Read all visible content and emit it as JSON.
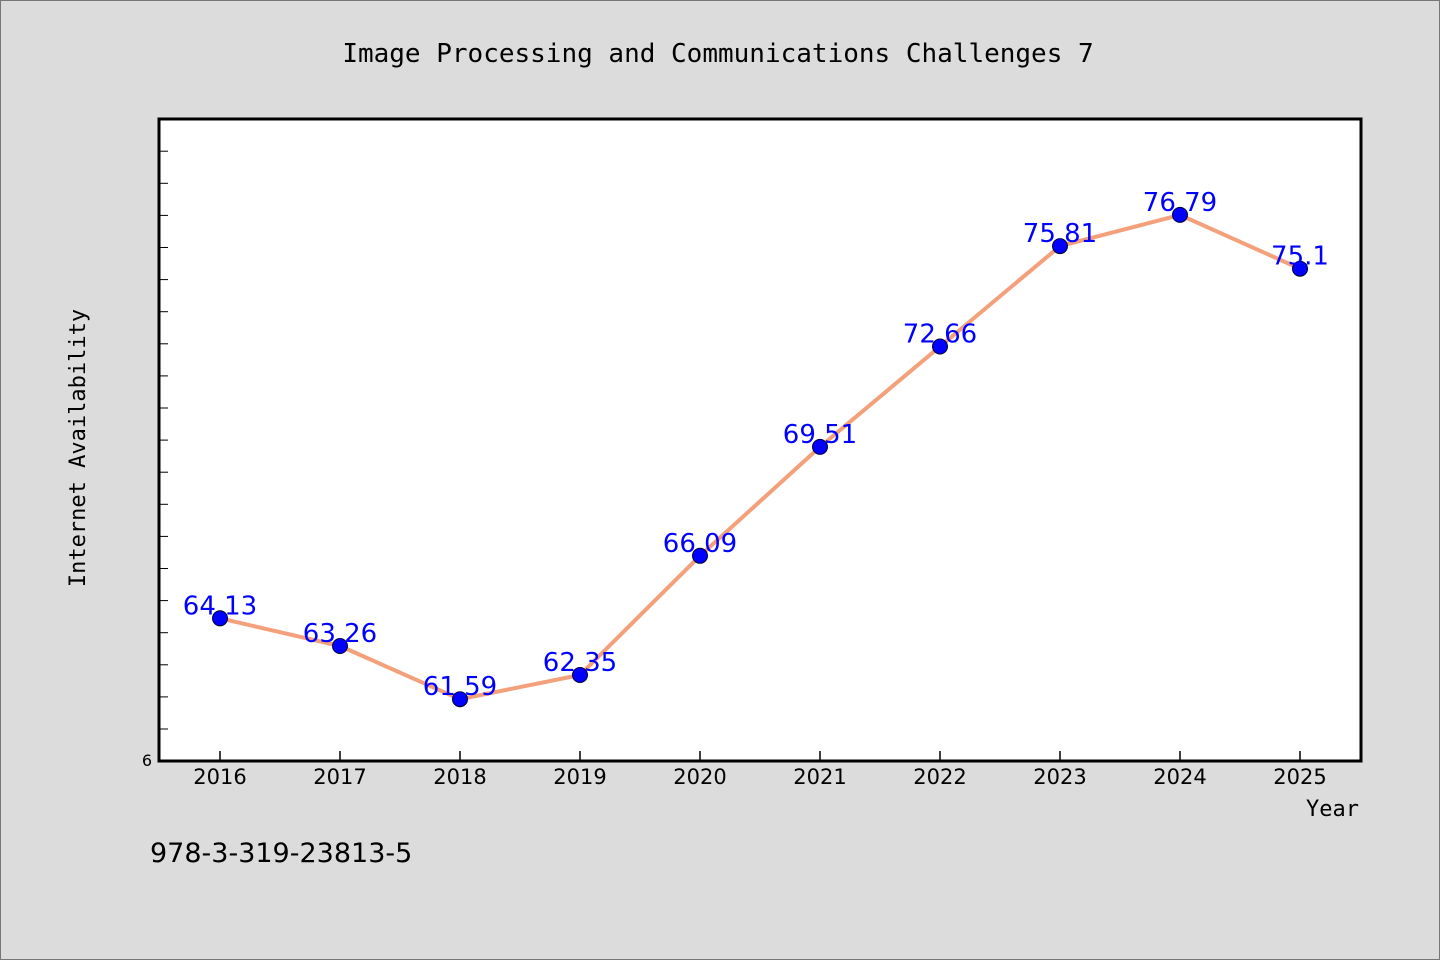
{
  "chart_data": {
    "type": "line",
    "title": "Image Processing and Communications Challenges 7",
    "xlabel": "Year",
    "ylabel": "Internet Availability",
    "categories": [
      "2016",
      "2017",
      "2018",
      "2019",
      "2020",
      "2021",
      "2022",
      "2023",
      "2024",
      "2025"
    ],
    "series": [
      {
        "values": [
          64.13,
          63.26,
          61.59,
          62.35,
          66.09,
          69.51,
          72.66,
          75.81,
          76.79,
          75.1
        ],
        "labels": [
          "64.13",
          "63.26",
          "61.59",
          "62.35",
          "66.09",
          "69.51",
          "72.66",
          "75.81",
          "76.79",
          "75.1"
        ]
      }
    ],
    "y_tick_labels": [
      "6"
    ],
    "ylim": [
      59.65,
      79.8
    ],
    "grid": false,
    "legend": "none",
    "line_color": "#f4a07a",
    "marker_color": "#0000ff",
    "label_color": "#0000ff"
  },
  "footer": {
    "isbn": "978-3-319-23813-5"
  }
}
